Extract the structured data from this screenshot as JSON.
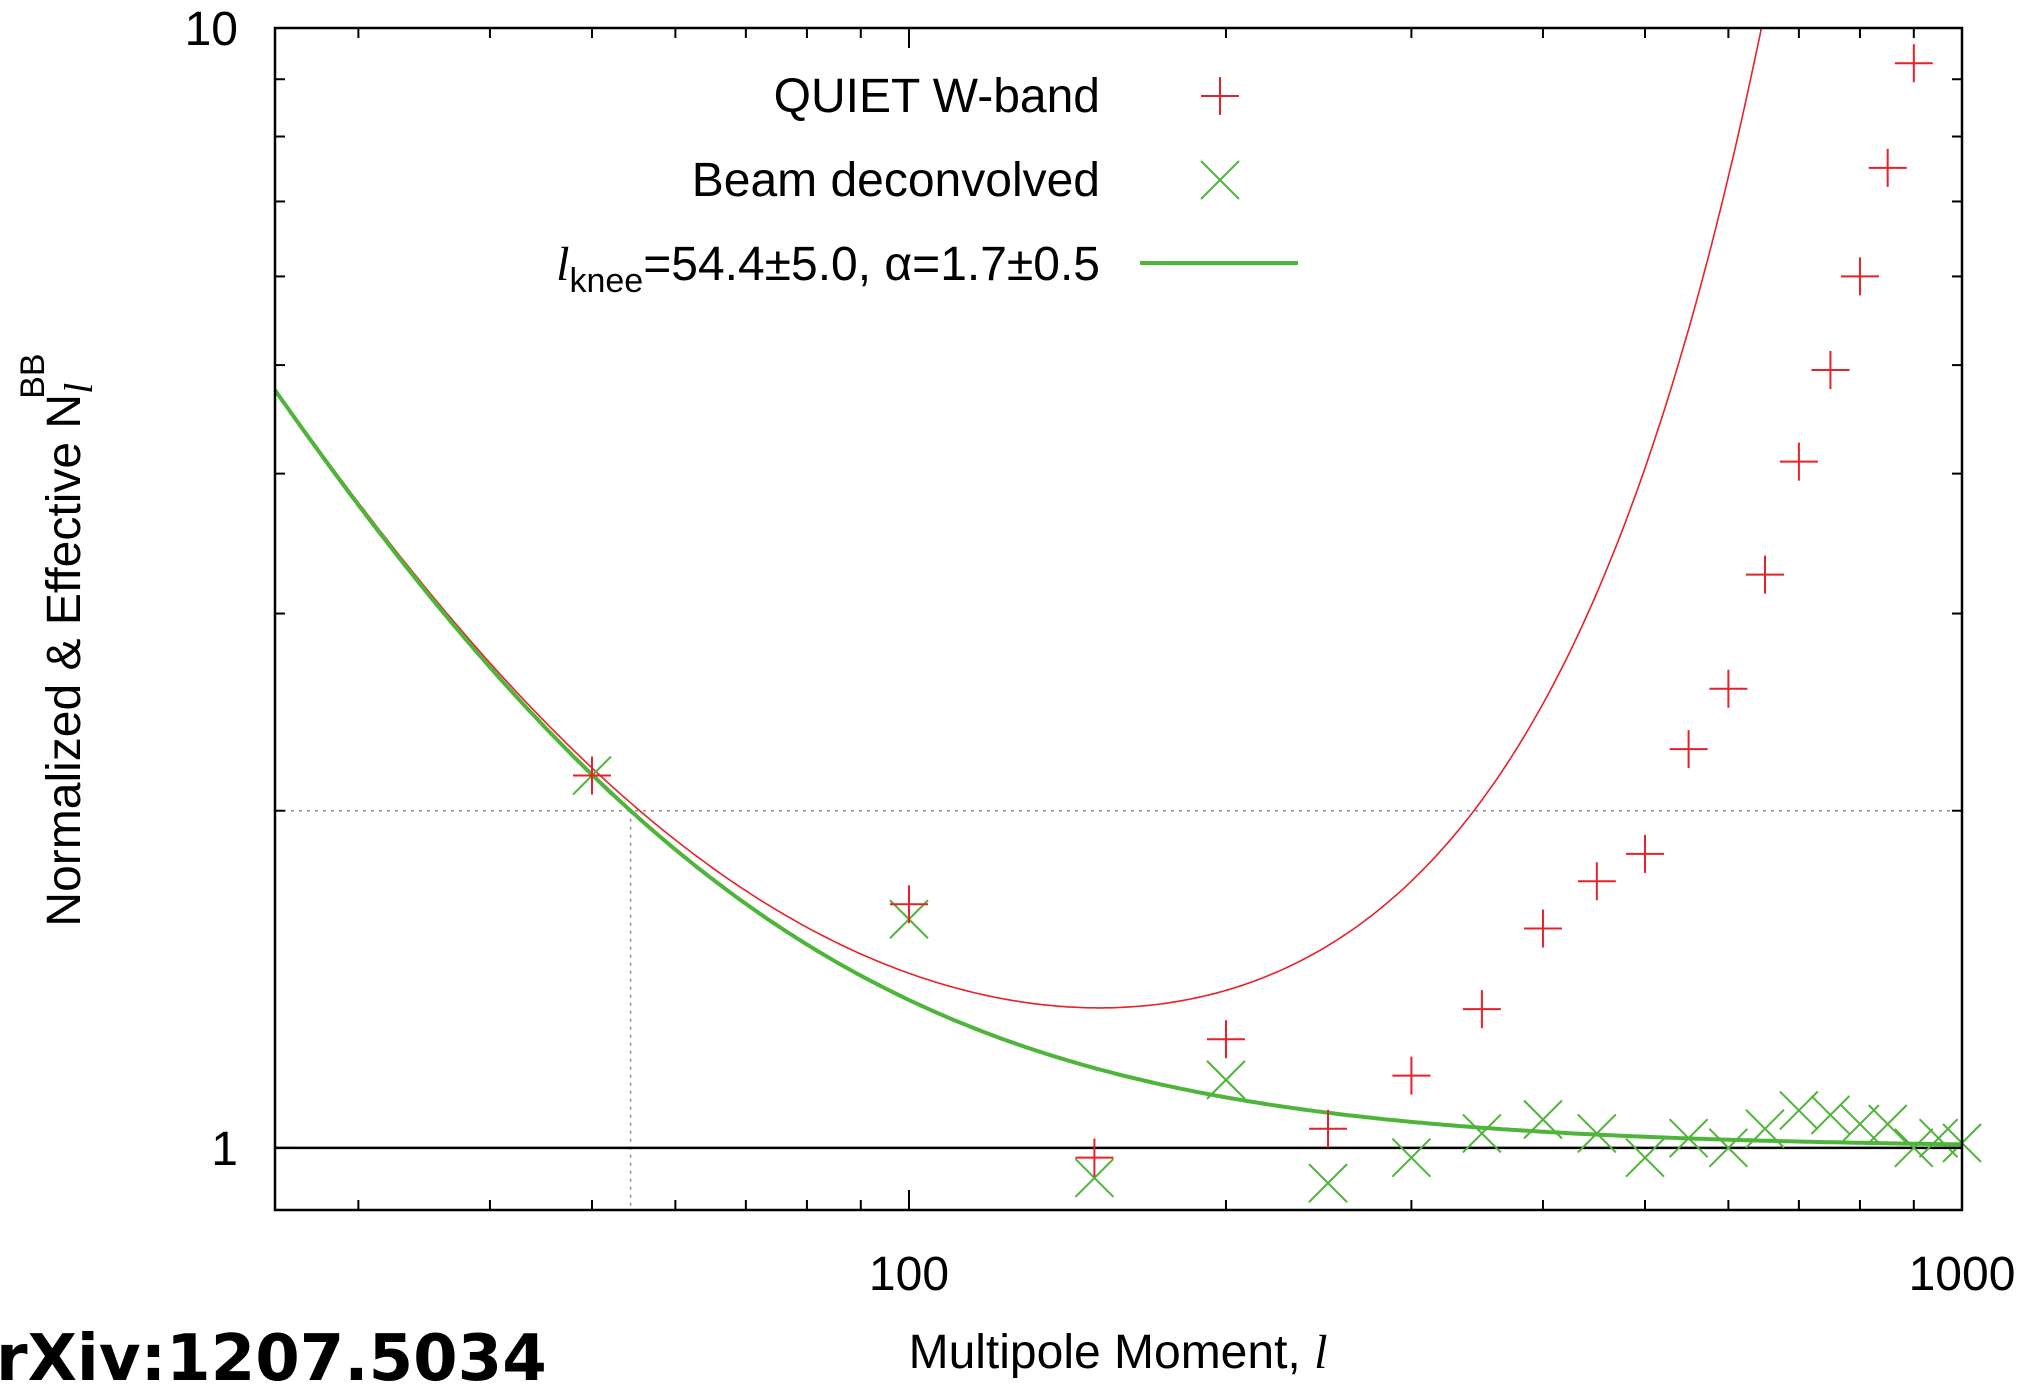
{
  "chart_data": {
    "type": "scatter",
    "xlabel": "Multipole Moment, ",
    "xlabel_symbol": "l",
    "ylabel": "Normalized & Effective N",
    "ylabel_sub": "l",
    "ylabel_sup": "BB",
    "x_scale": "log",
    "y_scale": "log",
    "xlim": [
      25,
      1000
    ],
    "ylim": [
      0.88,
      10
    ],
    "x_tick_labels": [
      "100",
      "1000"
    ],
    "y_tick_labels": [
      "1",
      "10"
    ],
    "legend_position": "top-center",
    "watermark": "rXiv:1207.5034",
    "colors": {
      "quiet": "#e8202a",
      "beam": "#4fb53a",
      "axis": "#000000",
      "grid": "#8c8c8c"
    },
    "series": [
      {
        "name": "QUIET W-band",
        "marker": "plus",
        "x": [
          50,
          100,
          150,
          200,
          250,
          300,
          350,
          400,
          450,
          500,
          550,
          600,
          650,
          700,
          750,
          800,
          850,
          900
        ],
        "y": [
          2.15,
          1.65,
          0.98,
          1.25,
          1.04,
          1.16,
          1.33,
          1.57,
          1.73,
          1.83,
          2.27,
          2.57,
          3.25,
          4.1,
          4.95,
          6.0,
          7.5,
          9.3
        ]
      },
      {
        "name": "Beam deconvolved",
        "marker": "cross",
        "x": [
          50,
          100,
          150,
          200,
          250,
          300,
          350,
          400,
          450,
          500,
          550,
          600,
          650,
          700,
          750,
          800,
          850,
          900,
          950,
          1000
        ],
        "y": [
          2.15,
          1.6,
          0.94,
          1.15,
          0.93,
          0.98,
          1.03,
          1.06,
          1.03,
          0.98,
          1.02,
          1.0,
          1.04,
          1.08,
          1.07,
          1.05,
          1.05,
          1.0,
          1.02,
          1.01
        ]
      }
    ],
    "fit": {
      "label_var": "l",
      "label_sub": "knee",
      "label_rest": "=54.4±5.0, α=1.7±0.5",
      "l_knee": 54.4,
      "alpha": 1.7
    },
    "reference_line_y": 1,
    "knee_guide": {
      "x": 54.4,
      "y": 2
    }
  }
}
